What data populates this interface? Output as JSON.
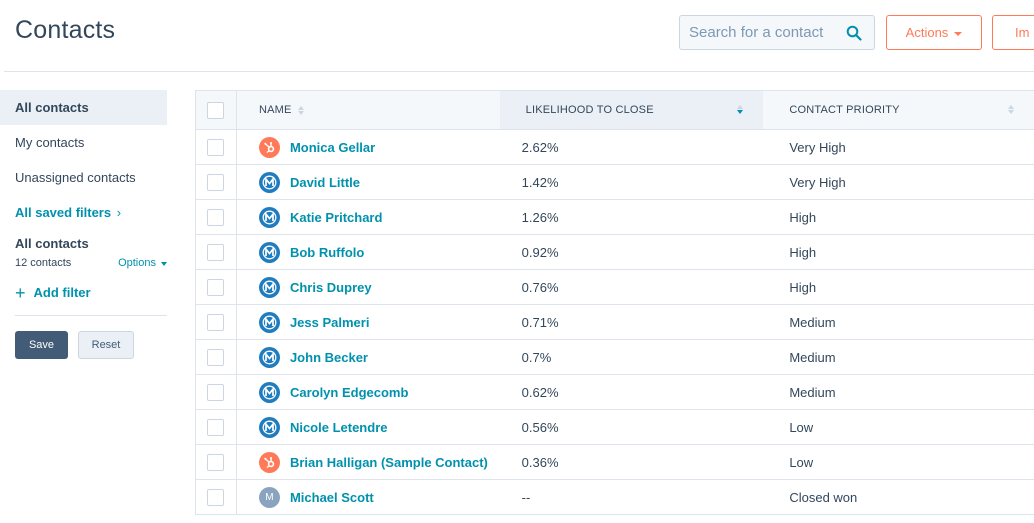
{
  "header": {
    "title": "Contacts",
    "search_placeholder": "Search for a contact",
    "actions_label": "Actions",
    "import_label": "Im"
  },
  "sidebar": {
    "views": [
      {
        "label": "All contacts",
        "active": true
      },
      {
        "label": "My contacts",
        "active": false
      },
      {
        "label": "Unassigned contacts",
        "active": false
      }
    ],
    "saved_filters_label": "All saved filters",
    "saved_filters_chevron": "›",
    "current_filter": {
      "title": "All contacts",
      "count": "12 contacts",
      "options_label": "Options"
    },
    "add_filter_label": "Add filter",
    "add_filter_plus": "+",
    "save_label": "Save",
    "reset_label": "Reset"
  },
  "table": {
    "columns": [
      "NAME",
      "LIKELIHOOD TO CLOSE",
      "CONTACT PRIORITY"
    ],
    "rows": [
      {
        "name": "Monica Gellar",
        "avatar": "hubspot-logo-icon",
        "likelihood": "2.62%",
        "priority": "Very High"
      },
      {
        "name": "David Little",
        "avatar": "company-logo-icon",
        "likelihood": "1.42%",
        "priority": "Very High"
      },
      {
        "name": "Katie Pritchard",
        "avatar": "company-logo-icon",
        "likelihood": "1.26%",
        "priority": "High"
      },
      {
        "name": "Bob Ruffolo",
        "avatar": "company-logo-icon",
        "likelihood": "0.92%",
        "priority": "High"
      },
      {
        "name": "Chris Duprey",
        "avatar": "company-logo-icon",
        "likelihood": "0.76%",
        "priority": "High"
      },
      {
        "name": "Jess Palmeri",
        "avatar": "company-logo-icon",
        "likelihood": "0.71%",
        "priority": "Medium"
      },
      {
        "name": "John Becker",
        "avatar": "company-logo-icon",
        "likelihood": "0.7%",
        "priority": "Medium"
      },
      {
        "name": "Carolyn Edgecomb",
        "avatar": "company-logo-icon",
        "likelihood": "0.62%",
        "priority": "Medium"
      },
      {
        "name": "Nicole Letendre",
        "avatar": "company-logo-icon",
        "likelihood": "0.56%",
        "priority": "Low"
      },
      {
        "name": "Brian Halligan (Sample Contact)",
        "avatar": "hubspot-logo-icon",
        "likelihood": "0.36%",
        "priority": "Low"
      },
      {
        "name": "Michael Scott",
        "avatar": "initial-avatar",
        "initial": "M",
        "likelihood": "--",
        "priority": "Closed won"
      }
    ]
  },
  "colors": {
    "accent_orange": "#ff7a59",
    "link_teal": "#0091ae",
    "text_dark": "#33475b",
    "save_button": "#425b76"
  }
}
